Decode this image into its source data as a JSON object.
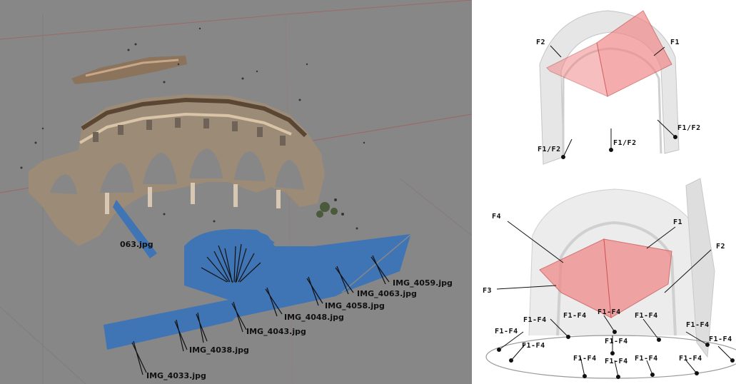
{
  "viewport": {
    "background": "#878787",
    "plane_color": "#3f74b5",
    "camera_labels": [
      "IMG_4059.jpg",
      "IMG_4063.jpg",
      "IMG_4058.jpg",
      "IMG_4048.jpg",
      "IMG_4043.jpg",
      "IMG_4038.jpg",
      "IMG_4033.jpg",
      "063.jpg"
    ]
  },
  "figure_top": {
    "label_f2": "F2",
    "label_f1": "F1",
    "label_f1f2_right": "F1/F2",
    "label_f1f2_mid": "F1/F2",
    "label_f1f2_left": "F1/F2"
  },
  "figure_bottom": {
    "label_f4": "F4",
    "label_f1": "F1",
    "label_f2": "F2",
    "label_f3": "F3",
    "ring_labels": [
      "F1-F4",
      "F1-F4",
      "F1-F4",
      "F1-F4",
      "F1-F4",
      "F1-F4",
      "F1-F4",
      "F1-F4",
      "F1-F4",
      "F1-F4",
      "F1-F4",
      "F1-F4",
      "F1-F4"
    ]
  },
  "colors": {
    "face_fill": "#f08a8a",
    "face_edge": "#c94a4a",
    "ghost": "#d8d8d8"
  }
}
